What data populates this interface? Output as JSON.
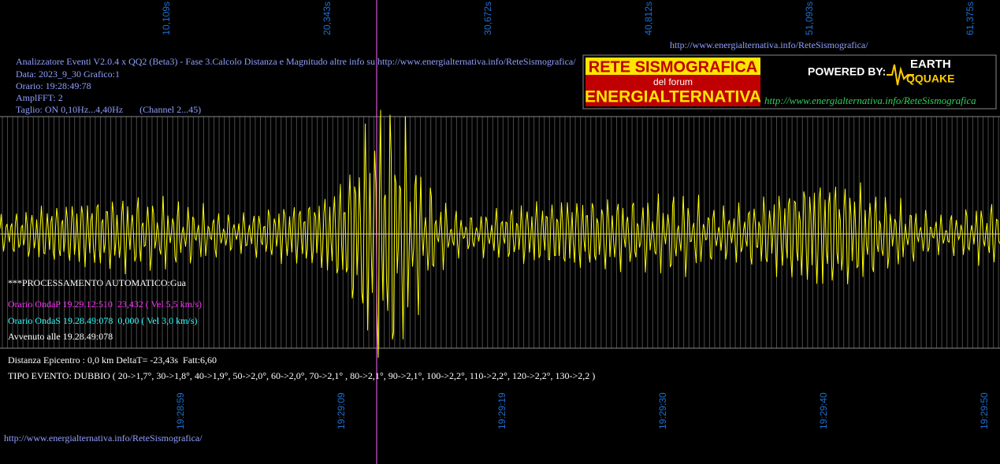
{
  "top_ticks": [
    "10,109s",
    "20,343s",
    "30,672s",
    "40,812s",
    "51,093s",
    "61,375s"
  ],
  "top_url": "http://www.energialternativa.info/ReteSismografica/",
  "header": [
    "Analizzatore Eventi V2.0.4 x QQ2 (Beta3) - Fase 3.Calcolo Distanza e Magnitudo altre info su http://www.energialternativa.info/ReteSismografica/",
    "Data: 2023_9_30 Grafico:1",
    "Orario: 19:28:49:78",
    "AmplFFT: 2",
    "Taglio: ON 0,10Hz...4,40Hz       (Channel 2...45)"
  ],
  "logo": {
    "title": "RETE SISMOGRAFICA",
    "subtitle": "del forum",
    "name": "ENERGIALTERNATIVA",
    "powered": "POWERED BY:",
    "earth": "EARTH",
    "quake": "QQUAKE",
    "url": "http://www.energialternativa.info/ReteSismografica"
  },
  "processing": "***PROCESSAMENTO AUTOMATICO:Gua",
  "onda_p": "Orario OndaP 19.29.12:510  23,432 ( Vel 5,5 km/s)",
  "onda_s": "Orario OndaS 19.28.49:078  0,000 ( Vel 3,0 km/s)",
  "avvenuto": "Avvenuto alle 19.28.49:078",
  "distanza": "Distanza Epicentro : 0,0 km DeltaT= -23,43s  Fatt:6,60",
  "tipo_evento": "TIPO EVENTO: DUBBIO ( 20->1,7°, 30->1,8°, 40->1,9°, 50->2,0°, 60->2,0°, 70->2,1° , 80->2,1°, 90->2,1°, 100->2,2°, 110->2,2°, 120->2,2°, 130->2,2 )",
  "bottom_ticks": [
    "19:28:59",
    "19:29:09",
    "19:29:19",
    "19:29:30",
    "19:29:40",
    "19:29:50"
  ],
  "bottom_url": "http://www.energialternativa.info/ReteSismografica/"
}
